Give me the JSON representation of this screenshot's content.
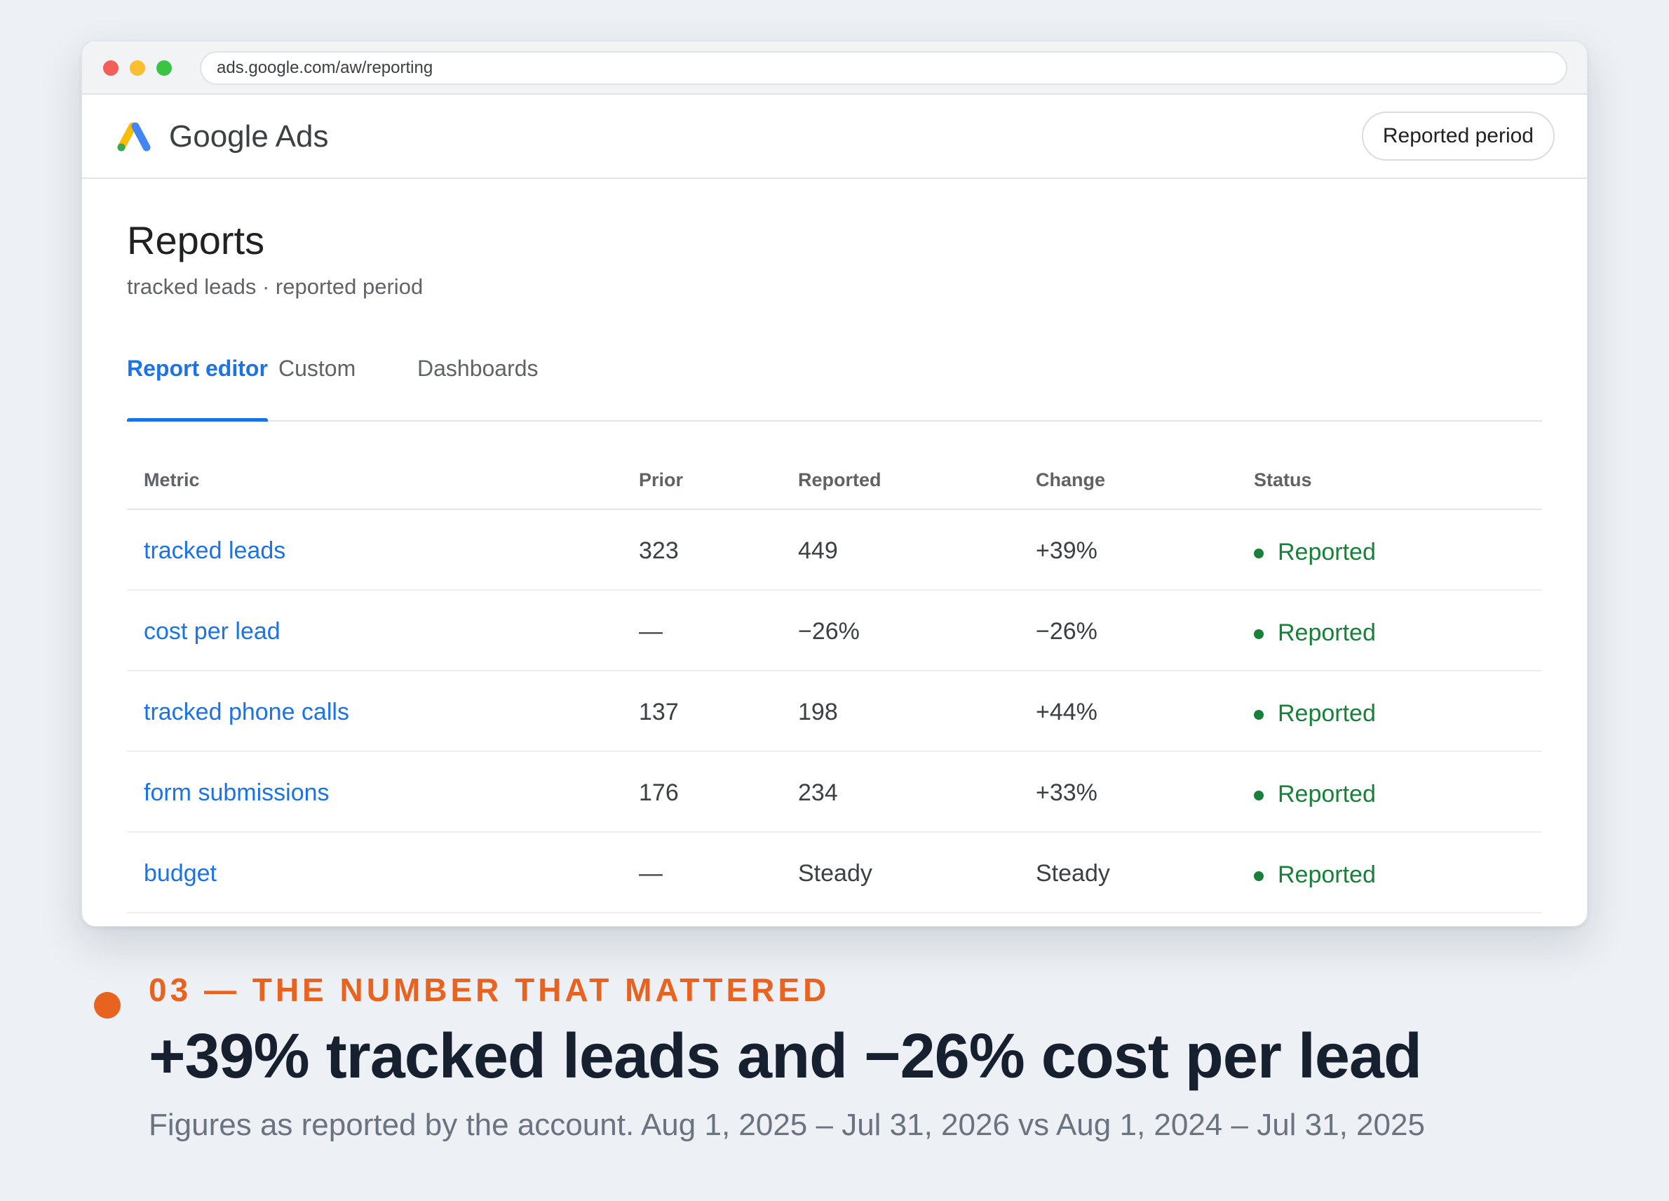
{
  "browser": {
    "url": "ads.google.com/aw/reporting"
  },
  "appbar": {
    "brand": "Google Ads",
    "period_button": "Reported period"
  },
  "page": {
    "title": "Reports",
    "subtitle": "tracked leads · reported period"
  },
  "tabs": [
    {
      "label": "Report editor",
      "active": true
    },
    {
      "label": "Custom",
      "active": false
    },
    {
      "label": "Dashboards",
      "active": false
    }
  ],
  "table": {
    "headers": [
      "Metric",
      "Prior",
      "Reported",
      "Change",
      "Status"
    ],
    "rows": [
      {
        "metric": "tracked leads",
        "prior": "323",
        "reported": "449",
        "change": "+39%",
        "status": "Reported"
      },
      {
        "metric": "cost per lead",
        "prior": "—",
        "reported": "−26%",
        "change": "−26%",
        "status": "Reported"
      },
      {
        "metric": "tracked phone calls",
        "prior": "137",
        "reported": "198",
        "change": "+44%",
        "status": "Reported"
      },
      {
        "metric": "form submissions",
        "prior": "176",
        "reported": "234",
        "change": "+33%",
        "status": "Reported"
      },
      {
        "metric": "budget",
        "prior": "—",
        "reported": "Steady",
        "change": "Steady",
        "status": "Reported"
      }
    ]
  },
  "caption": {
    "kicker": "03 — THE NUMBER THAT MATTERED",
    "headline": "+39% tracked leads and −26% cost per lead",
    "footnote": "Figures as reported by the account. Aug 1, 2025 – Jul 31, 2026 vs Aug 1, 2024 – Jul 31, 2025"
  },
  "colors": {
    "accent_blue": "#1a73e8",
    "status_green": "#188038",
    "caption_orange": "#e8631f",
    "logo_yellow": "#fbbc04",
    "logo_blue": "#4285f4",
    "logo_green": "#34a853"
  }
}
